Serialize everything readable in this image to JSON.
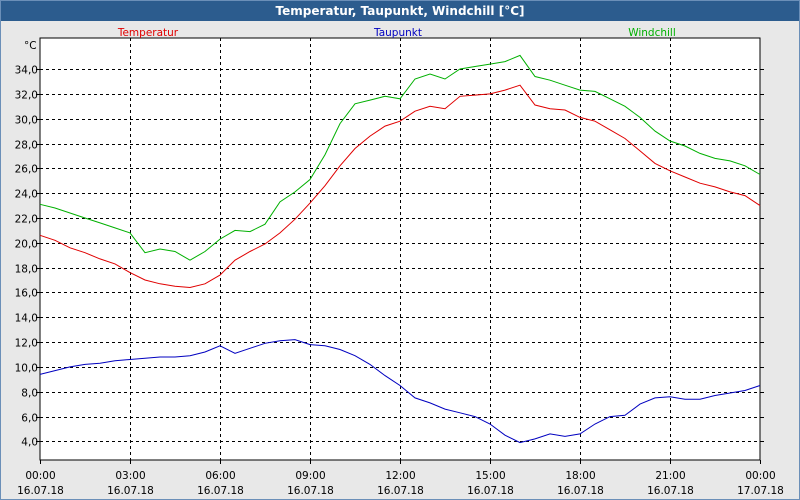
{
  "window": {
    "title": "Temperatur, Taupunkt, Windchill [°C]"
  },
  "chart_data": {
    "type": "line",
    "title": "Temperatur, Taupunkt, Windchill [°C]",
    "ylabel": "°C",
    "xlabel": "",
    "ylim": [
      2.5,
      36.5
    ],
    "y_ticks": [
      "4,0",
      "6,0",
      "8,0",
      "10,0",
      "12,0",
      "14,0",
      "16,0",
      "18,0",
      "20,0",
      "22,0",
      "24,0",
      "26,0",
      "28,0",
      "30,0",
      "32,0",
      "34,0"
    ],
    "x_ticks": [
      {
        "time": "00:00",
        "date": "16.07.18"
      },
      {
        "time": "03:00",
        "date": "16.07.18"
      },
      {
        "time": "06:00",
        "date": "16.07.18"
      },
      {
        "time": "09:00",
        "date": "16.07.18"
      },
      {
        "time": "12:00",
        "date": "16.07.18"
      },
      {
        "time": "15:00",
        "date": "16.07.18"
      },
      {
        "time": "18:00",
        "date": "16.07.18"
      },
      {
        "time": "21:00",
        "date": "16.07.18"
      },
      {
        "time": "00:00",
        "date": "17.07.18"
      }
    ],
    "x_unit": "hours",
    "grid": true,
    "legend_placement": "top",
    "series": [
      {
        "name": "Temperatur",
        "color": "#e00000",
        "x": [
          0,
          0.5,
          1,
          1.5,
          2,
          2.5,
          3,
          3.5,
          4,
          4.5,
          5,
          5.5,
          6,
          6.5,
          7,
          7.5,
          8,
          8.5,
          9,
          9.5,
          10,
          10.5,
          11,
          11.5,
          12,
          12.5,
          13,
          13.5,
          14,
          14.5,
          15,
          15.5,
          16,
          16.5,
          17,
          17.5,
          18,
          18.5,
          19,
          19.5,
          20,
          20.5,
          21,
          21.5,
          22,
          22.5,
          23,
          23.5,
          24
        ],
        "values": [
          20.6,
          20.2,
          19.6,
          19.2,
          18.7,
          18.3,
          17.6,
          17.0,
          16.7,
          16.5,
          16.4,
          16.7,
          17.4,
          18.6,
          19.3,
          19.9,
          20.8,
          21.9,
          23.2,
          24.6,
          26.2,
          27.6,
          28.6,
          29.4,
          29.8,
          30.6,
          31.0,
          30.8,
          31.8,
          31.9,
          32.0,
          32.3,
          32.7,
          31.1,
          30.8,
          30.7,
          30.1,
          29.8,
          29.1,
          28.4,
          27.4,
          26.4,
          25.8,
          25.3,
          24.8,
          24.5,
          24.1,
          23.8,
          23.0
        ]
      },
      {
        "name": "Taupunkt",
        "color": "#0000c0",
        "x": [
          0,
          0.5,
          1,
          1.5,
          2,
          2.5,
          3,
          3.5,
          4,
          4.5,
          5,
          5.5,
          6,
          6.5,
          7,
          7.5,
          8,
          8.5,
          9,
          9.5,
          10,
          10.5,
          11,
          11.5,
          12,
          12.5,
          13,
          13.5,
          14,
          14.5,
          15,
          15.5,
          16,
          16.5,
          17,
          17.5,
          18,
          18.5,
          19,
          19.5,
          20,
          20.5,
          21,
          21.5,
          22,
          22.5,
          23,
          23.5,
          24
        ],
        "values": [
          9.4,
          9.7,
          10.0,
          10.2,
          10.3,
          10.5,
          10.6,
          10.7,
          10.8,
          10.8,
          10.9,
          11.2,
          11.7,
          11.1,
          11.5,
          11.9,
          12.1,
          12.2,
          11.8,
          11.7,
          11.4,
          10.9,
          10.2,
          9.3,
          8.5,
          7.5,
          7.1,
          6.6,
          6.3,
          6.0,
          5.4,
          4.5,
          3.9,
          4.2,
          4.6,
          4.4,
          4.6,
          5.4,
          6.0,
          6.1,
          7.0,
          7.5,
          7.6,
          7.4,
          7.4,
          7.7,
          7.9,
          8.1,
          8.5
        ]
      },
      {
        "name": "Windchill",
        "color": "#00b000",
        "x": [
          0,
          0.5,
          1,
          1.5,
          2,
          2.5,
          3,
          3.5,
          4,
          4.5,
          5,
          5.5,
          6,
          6.5,
          7,
          7.5,
          8,
          8.5,
          9,
          9.5,
          10,
          10.5,
          11,
          11.5,
          12,
          12.5,
          13,
          13.5,
          14,
          14.5,
          15,
          15.5,
          16,
          16.5,
          17,
          17.5,
          18,
          18.5,
          19,
          19.5,
          20,
          20.5,
          21,
          21.5,
          22,
          22.5,
          23,
          23.5,
          24
        ],
        "values": [
          23.1,
          22.8,
          22.4,
          22.0,
          21.6,
          21.2,
          20.8,
          19.2,
          19.5,
          19.3,
          18.6,
          19.3,
          20.3,
          21.0,
          20.9,
          21.5,
          23.3,
          24.1,
          25.1,
          27.1,
          29.6,
          31.2,
          31.5,
          31.8,
          31.6,
          33.2,
          33.6,
          33.2,
          34.0,
          34.2,
          34.4,
          34.6,
          35.1,
          33.4,
          33.1,
          32.7,
          32.3,
          32.2,
          31.6,
          31.0,
          30.1,
          29.0,
          28.2,
          27.8,
          27.2,
          26.8,
          26.6,
          26.2,
          25.5
        ]
      }
    ]
  }
}
